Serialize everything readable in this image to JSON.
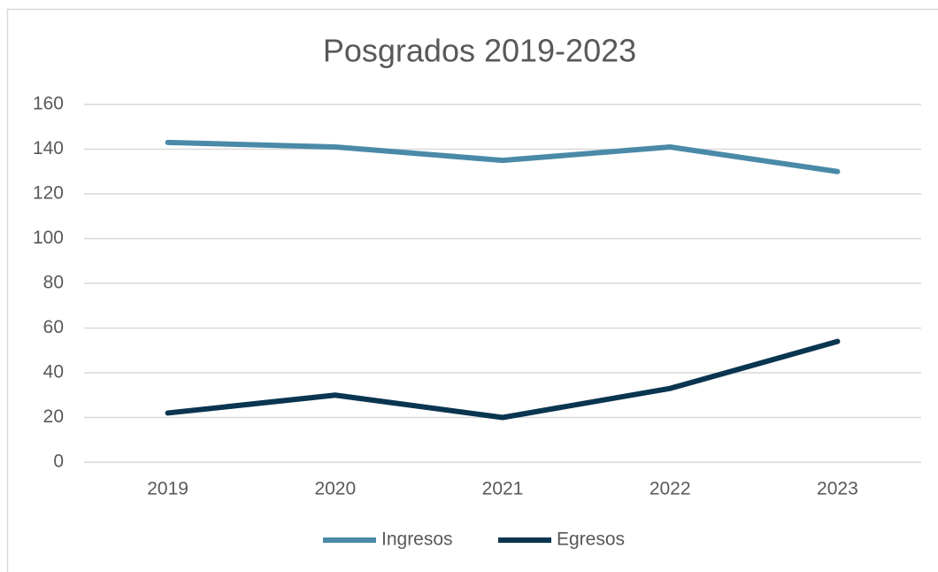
{
  "chart_data": {
    "type": "line",
    "title": "Posgrados 2019-2023",
    "categories": [
      "2019",
      "2020",
      "2021",
      "2022",
      "2023"
    ],
    "series": [
      {
        "name": "Ingresos",
        "color": "#4a8aa8",
        "values": [
          143,
          141,
          135,
          141,
          130
        ]
      },
      {
        "name": "Egresos",
        "color": "#0a3550",
        "values": [
          22,
          30,
          20,
          33,
          54
        ]
      }
    ],
    "ylim": [
      0,
      160
    ],
    "yticks": [
      0,
      20,
      40,
      60,
      80,
      100,
      120,
      140,
      160
    ],
    "grid": true,
    "legend": "bottom"
  }
}
